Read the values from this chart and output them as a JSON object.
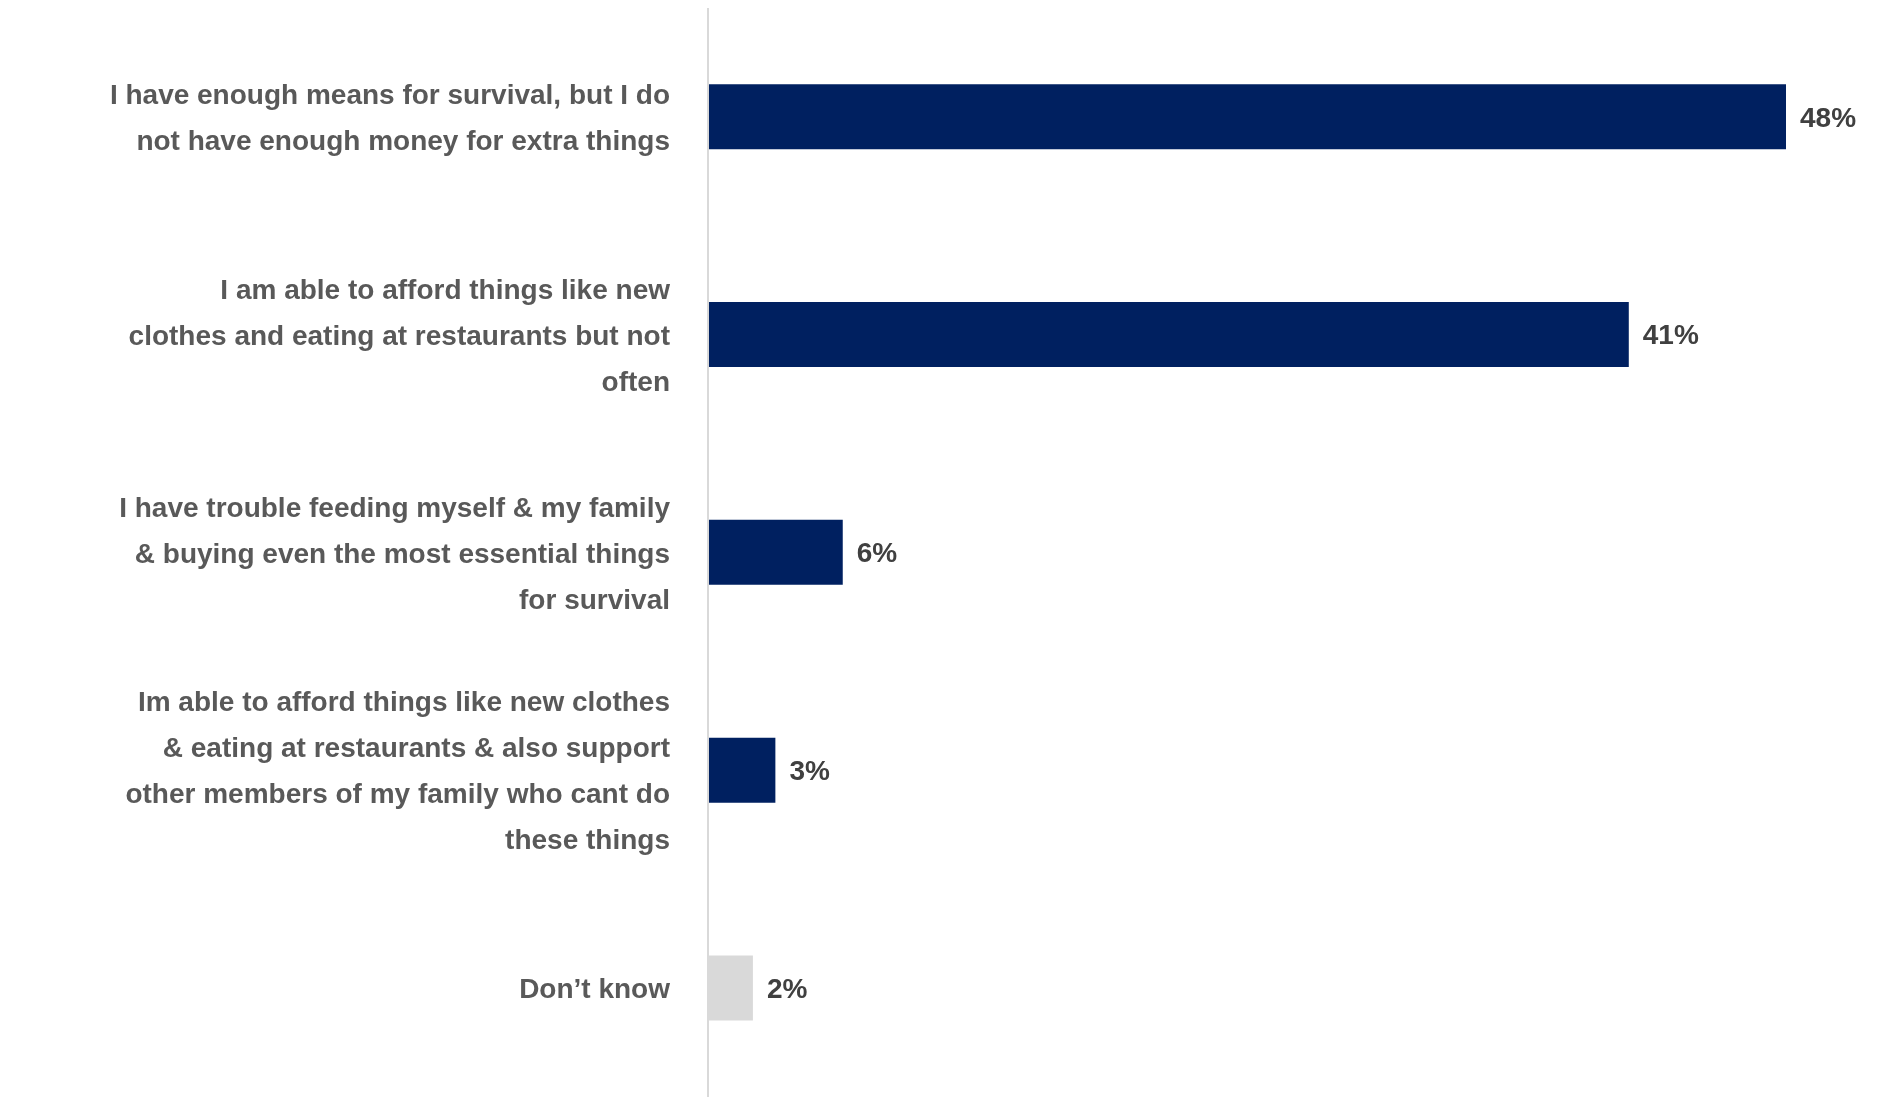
{
  "chart_data": {
    "type": "bar",
    "orientation": "horizontal",
    "categories": [
      "I have enough means for survival, but I do not have enough money for extra things",
      "I am able to afford things like new clothes and eating at restaurants but not often",
      "I have trouble feeding myself & my family & buying even the most essential things for survival",
      "Im able to afford things like new clothes & eating at restaurants & also support other members of my family who cant do these things",
      "Don’t know"
    ],
    "values": [
      48,
      41,
      6,
      3,
      2
    ],
    "colors": [
      "#002060",
      "#002060",
      "#002060",
      "#002060",
      "#d9d9d9"
    ],
    "value_labels": [
      "48%",
      "41%",
      "6%",
      "3%",
      "2%"
    ]
  }
}
